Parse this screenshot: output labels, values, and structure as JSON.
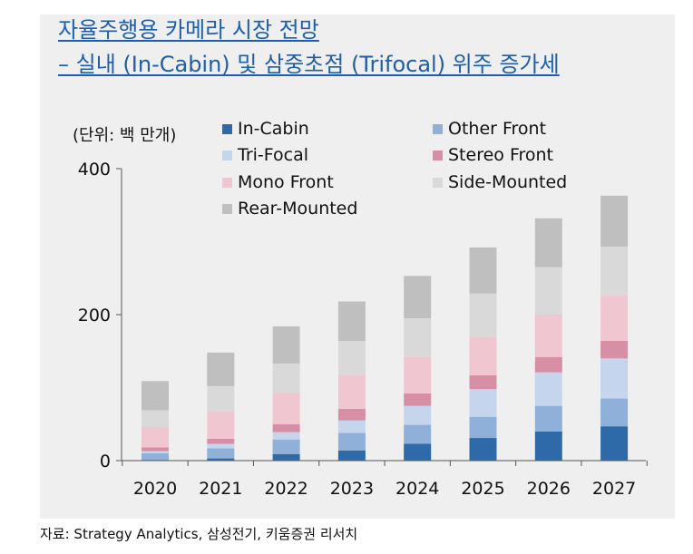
{
  "title_line1": "자율주행용 카메라 시장 전망",
  "title_line2": "– 실내 (In-Cabin) 및 삼중초점 (Trifocal) 위주 증가세",
  "unit_label": "(단위: 백 만개)",
  "source": "자료: Strategy Analytics, 삼성전기, 키움증권 리서치",
  "chart_data": {
    "type": "bar",
    "stacked": true,
    "title": "자율주행용 카메라 시장 전망",
    "ylabel": "(단위: 백 만개)",
    "ylim": [
      0,
      400
    ],
    "yticks": [
      0,
      200,
      400
    ],
    "grid": false,
    "legend_position": "top",
    "categories": [
      "2020",
      "2021",
      "2022",
      "2023",
      "2024",
      "2025",
      "2026",
      "2027"
    ],
    "series": [
      {
        "name": "In-Cabin",
        "color": "#2e6aa8",
        "values": [
          1,
          3,
          9,
          14,
          23,
          31,
          40,
          47
        ]
      },
      {
        "name": "Other Front",
        "color": "#8fb0d8",
        "values": [
          9,
          14,
          20,
          24,
          26,
          29,
          35,
          38
        ]
      },
      {
        "name": "Tri-Focal",
        "color": "#c5d6ec",
        "values": [
          3,
          6,
          10,
          17,
          26,
          38,
          46,
          55
        ]
      },
      {
        "name": "Stereo Front",
        "color": "#d68fa5",
        "values": [
          5,
          7,
          11,
          16,
          17,
          19,
          21,
          24
        ]
      },
      {
        "name": "Mono Front",
        "color": "#f0c6d1",
        "values": [
          28,
          38,
          43,
          46,
          50,
          52,
          58,
          62
        ]
      },
      {
        "name": "Side-Mounted",
        "color": "#d9d9d9",
        "values": [
          23,
          34,
          40,
          47,
          53,
          60,
          65,
          67
        ]
      },
      {
        "name": "Rear-Mounted",
        "color": "#bfbfbf",
        "values": [
          40,
          46,
          51,
          54,
          58,
          63,
          67,
          70
        ]
      }
    ]
  }
}
